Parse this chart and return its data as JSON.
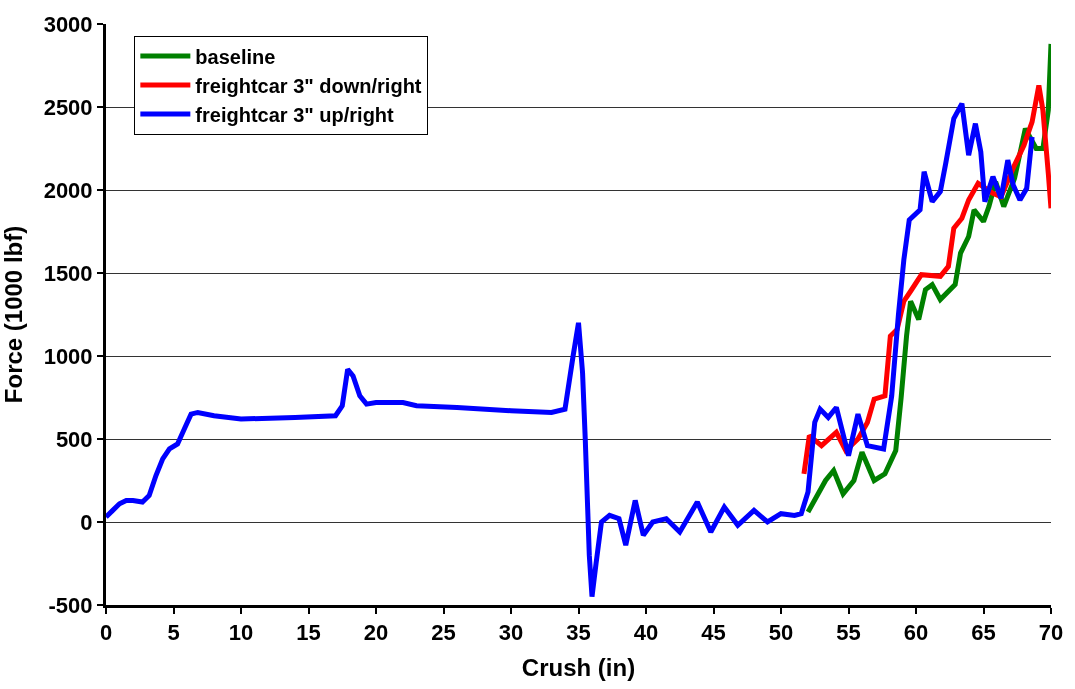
{
  "chart_data": {
    "type": "line",
    "xlabel": "Crush (in)",
    "ylabel": "Force (1000 lbf)",
    "xlim": [
      0,
      70
    ],
    "xticks": [
      0,
      5,
      10,
      15,
      20,
      25,
      30,
      35,
      40,
      45,
      50,
      55,
      60,
      65,
      70
    ],
    "ylim": [
      -500,
      3000
    ],
    "yticks": [
      -500,
      0,
      500,
      1000,
      1500,
      2000,
      2500,
      3000
    ],
    "grid": "y",
    "legend": "top left",
    "marker": "none",
    "line_style": "solid",
    "series": [
      {
        "name": "baseline",
        "color": "#008000",
        "x": [
          52,
          53.3,
          53.9,
          54.6,
          55.4,
          56,
          56.9,
          57.7,
          58.5,
          58.9,
          59.3,
          59.6,
          60.2,
          60.7,
          61.2,
          61.8,
          62.9,
          63.3,
          63.9,
          64.3,
          65,
          65.4,
          65.9,
          66.5,
          67.3,
          68.1,
          68.9,
          69.4,
          69.8,
          70
        ],
        "values": [
          60,
          250,
          310,
          170,
          250,
          420,
          250,
          290,
          430,
          750,
          1120,
          1330,
          1220,
          1400,
          1430,
          1340,
          1430,
          1620,
          1720,
          1880,
          1810,
          1900,
          2050,
          1900,
          2070,
          2370,
          2250,
          2250,
          2480,
          2880
        ]
      },
      {
        "name": "freightcar 3\" down/right",
        "color": "#ff0000",
        "x": [
          51.7,
          52.1,
          53,
          54.1,
          54.8,
          55.7,
          56.4,
          56.9,
          57.7,
          58.1,
          58.6,
          59.1,
          59.6,
          60.4,
          61.8,
          62.4,
          62.8,
          63.4,
          63.9,
          64.6,
          65.7,
          66.3,
          67.3,
          68,
          68.6,
          69.1,
          69.4,
          69.8,
          70
        ],
        "values": [
          290,
          520,
          460,
          540,
          430,
          500,
          600,
          740,
          760,
          1120,
          1160,
          1330,
          1390,
          1490,
          1480,
          1540,
          1770,
          1830,
          1940,
          2040,
          1980,
          1960,
          2150,
          2270,
          2410,
          2630,
          2480,
          2100,
          1890
        ]
      },
      {
        "name": "freightcar 3\" up/right",
        "color": "#0000ff",
        "x": [
          0,
          0.5,
          1,
          1.5,
          2,
          2.7,
          3.2,
          3.7,
          4.2,
          4.7,
          5.3,
          5.8,
          6.3,
          6.8,
          8,
          10,
          14,
          17,
          17.5,
          17.9,
          18.3,
          18.8,
          19.3,
          20,
          22,
          23,
          26,
          30,
          33,
          34,
          34.6,
          35,
          35.3,
          35.5,
          35.8,
          36,
          36.3,
          36.7,
          37.3,
          38,
          38.5,
          39.2,
          39.8,
          40.5,
          41.5,
          42.5,
          43.8,
          44.8,
          45.8,
          46.8,
          48,
          49,
          50,
          51,
          51.5,
          52,
          52.5,
          52.9,
          53.5,
          54.1,
          55,
          55.7,
          56.4,
          57.6,
          58.2,
          58.7,
          59.1,
          59.5,
          60.3,
          60.6,
          61.2,
          61.8,
          62.2,
          62.8,
          63.4,
          63.9,
          64.4,
          64.8,
          65.1,
          65.7,
          66.3,
          66.8,
          67.2,
          67.7,
          68.2,
          68.6
        ],
        "values": [
          30,
          70,
          110,
          130,
          130,
          120,
          160,
          280,
          380,
          440,
          470,
          560,
          650,
          660,
          640,
          620,
          630,
          640,
          700,
          920,
          880,
          760,
          710,
          720,
          720,
          700,
          690,
          670,
          660,
          680,
          1000,
          1200,
          900,
          500,
          -200,
          -450,
          -250,
          0,
          40,
          20,
          -140,
          130,
          -80,
          0,
          20,
          -60,
          120,
          -60,
          90,
          -20,
          70,
          0,
          50,
          40,
          50,
          180,
          600,
          680,
          630,
          690,
          400,
          650,
          460,
          440,
          760,
          1250,
          1580,
          1820,
          1880,
          2110,
          1930,
          1990,
          2160,
          2430,
          2520,
          2210,
          2400,
          2230,
          1930,
          2080,
          1950,
          2180,
          2030,
          1940,
          2010,
          2320
        ]
      }
    ]
  }
}
